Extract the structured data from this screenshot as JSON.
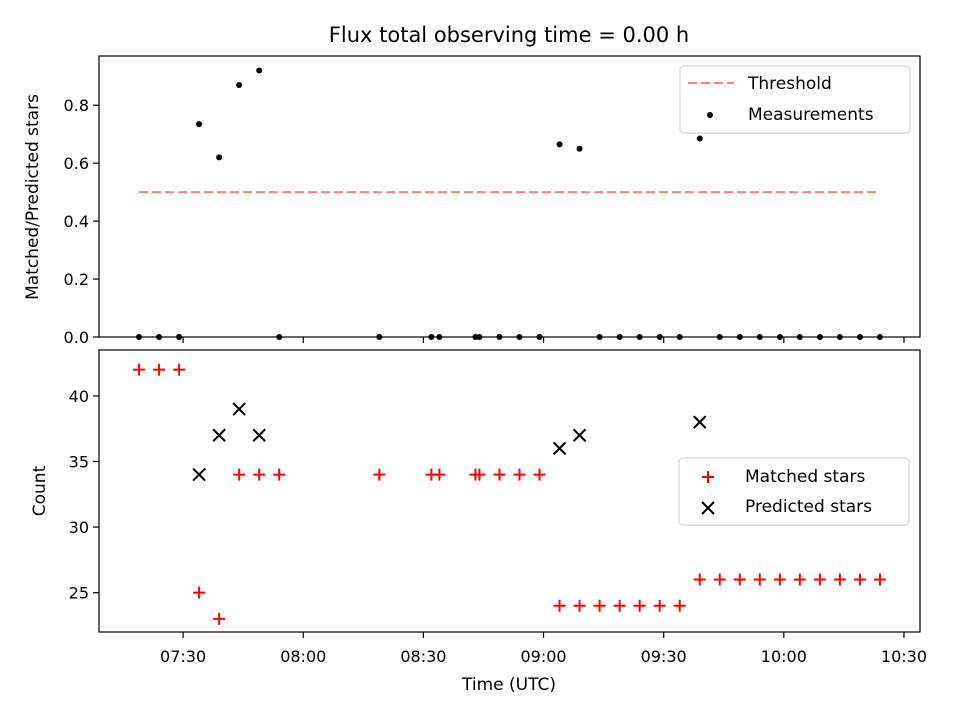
{
  "figure": {
    "title": "Flux total observing time = 0.00 h"
  },
  "chart_data": [
    {
      "type": "scatter",
      "panel": "top",
      "ylabel": "Matched/Predicted stars",
      "xlim": [
        "07:09",
        "10:34"
      ],
      "ylim": [
        0,
        0.97
      ],
      "yticks": [
        "0.0",
        "0.2",
        "0.4",
        "0.6",
        "0.8"
      ],
      "legend_position": "top-right",
      "threshold": {
        "name": "Threshold",
        "value": 0.5,
        "x_range": [
          "07:19",
          "10:24"
        ],
        "color": "#ff7f7f",
        "style": "dashed"
      },
      "series": [
        {
          "name": "Measurements",
          "color": "#000000",
          "marker": "dot",
          "points": [
            [
              "07:19",
              0.0
            ],
            [
              "07:24",
              0.0
            ],
            [
              "07:29",
              0.0
            ],
            [
              "07:34",
              0.735
            ],
            [
              "07:39",
              0.62
            ],
            [
              "07:44",
              0.87
            ],
            [
              "07:49",
              0.92
            ],
            [
              "07:54",
              0.0
            ],
            [
              "08:19",
              0.0
            ],
            [
              "08:32",
              0.0
            ],
            [
              "08:34",
              0.0
            ],
            [
              "08:43",
              0.0
            ],
            [
              "08:44",
              0.0
            ],
            [
              "08:49",
              0.0
            ],
            [
              "08:54",
              0.0
            ],
            [
              "08:59",
              0.0
            ],
            [
              "09:04",
              0.665
            ],
            [
              "09:09",
              0.65
            ],
            [
              "09:14",
              0.0
            ],
            [
              "09:19",
              0.0
            ],
            [
              "09:24",
              0.0
            ],
            [
              "09:29",
              0.0
            ],
            [
              "09:34",
              0.0
            ],
            [
              "09:39",
              0.685
            ],
            [
              "09:44",
              0.0
            ],
            [
              "09:49",
              0.0
            ],
            [
              "09:54",
              0.0
            ],
            [
              "09:59",
              0.0
            ],
            [
              "10:04",
              0.0
            ],
            [
              "10:09",
              0.0
            ],
            [
              "10:14",
              0.0
            ],
            [
              "10:19",
              0.0
            ],
            [
              "10:24",
              0.0
            ]
          ]
        }
      ]
    },
    {
      "type": "scatter",
      "panel": "bottom",
      "xlabel": "Time (UTC)",
      "ylabel": "Count",
      "xlim": [
        "07:09",
        "10:34"
      ],
      "ylim": [
        22.0,
        43.5
      ],
      "xticks": [
        "07:30",
        "08:00",
        "08:30",
        "09:00",
        "09:30",
        "10:00",
        "10:30"
      ],
      "yticks": [
        "25",
        "30",
        "35",
        "40"
      ],
      "legend_position": "center-right",
      "series": [
        {
          "name": "Matched stars",
          "color": "#ff0000",
          "marker": "plus",
          "points": [
            [
              "07:19",
              42
            ],
            [
              "07:24",
              42
            ],
            [
              "07:29",
              42
            ],
            [
              "07:34",
              25
            ],
            [
              "07:39",
              23
            ],
            [
              "07:44",
              34
            ],
            [
              "07:49",
              34
            ],
            [
              "07:54",
              34
            ],
            [
              "08:19",
              34
            ],
            [
              "08:32",
              34
            ],
            [
              "08:34",
              34
            ],
            [
              "08:43",
              34
            ],
            [
              "08:44",
              34
            ],
            [
              "08:49",
              34
            ],
            [
              "08:54",
              34
            ],
            [
              "08:59",
              34
            ],
            [
              "09:04",
              24
            ],
            [
              "09:09",
              24
            ],
            [
              "09:14",
              24
            ],
            [
              "09:19",
              24
            ],
            [
              "09:24",
              24
            ],
            [
              "09:29",
              24
            ],
            [
              "09:34",
              24
            ],
            [
              "09:39",
              26
            ],
            [
              "09:44",
              26
            ],
            [
              "09:49",
              26
            ],
            [
              "09:54",
              26
            ],
            [
              "09:59",
              26
            ],
            [
              "10:04",
              26
            ],
            [
              "10:09",
              26
            ],
            [
              "10:14",
              26
            ],
            [
              "10:19",
              26
            ],
            [
              "10:24",
              26
            ]
          ]
        },
        {
          "name": "Predicted stars",
          "color": "#000000",
          "marker": "x",
          "points": [
            [
              "07:34",
              34
            ],
            [
              "07:39",
              37
            ],
            [
              "07:44",
              39
            ],
            [
              "07:49",
              37
            ],
            [
              "09:04",
              36
            ],
            [
              "09:09",
              37
            ],
            [
              "09:39",
              38
            ]
          ]
        }
      ]
    }
  ]
}
